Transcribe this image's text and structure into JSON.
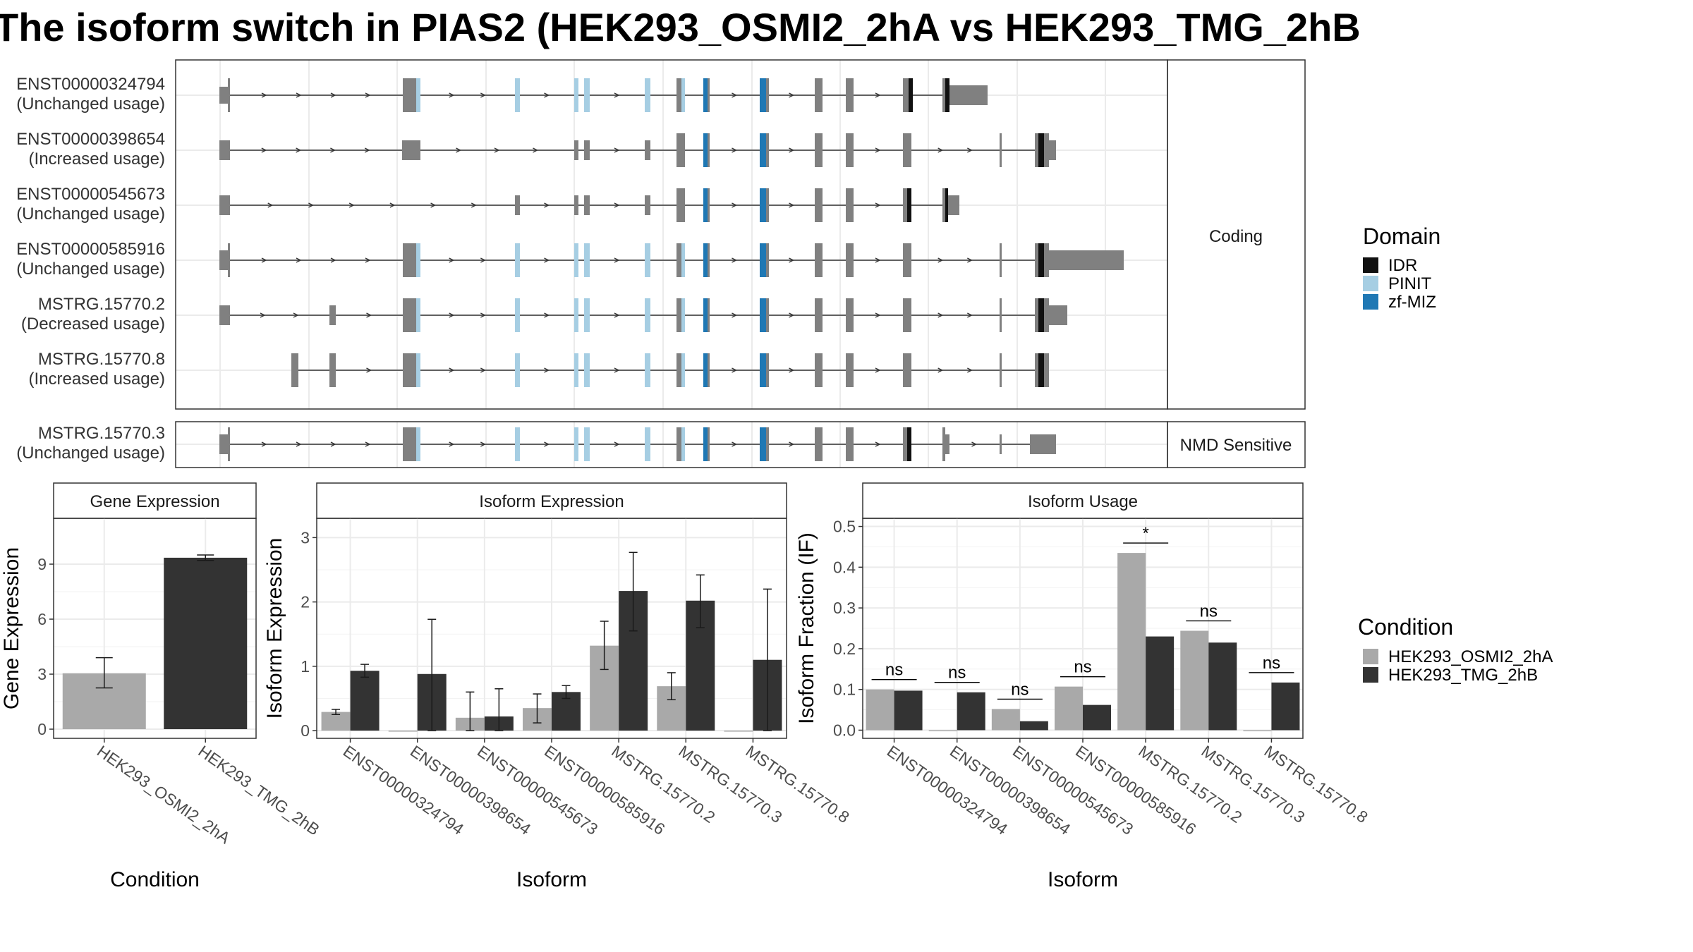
{
  "title": "The isoform switch in PIAS2 (HEK293_OSMI2_2hA vs HEK293_TMG_2hB",
  "colors": {
    "exon": "#808080",
    "idr": "#111111",
    "pinit": "#a6cee3",
    "zfmiz": "#1f78b4",
    "cond1": "#a9a9a9",
    "cond2": "#333333"
  },
  "structure": {
    "facets": [
      "Coding",
      "NMD Sensitive"
    ],
    "transcripts": [
      {
        "id": "ENST00000324794",
        "usage": "(Unchanged usage)",
        "group": 0
      },
      {
        "id": "ENST00000398654",
        "usage": "(Increased usage)",
        "group": 0
      },
      {
        "id": "ENST00000545673",
        "usage": "(Unchanged usage)",
        "group": 0
      },
      {
        "id": "ENST00000585916",
        "usage": "(Unchanged usage)",
        "group": 0
      },
      {
        "id": "MSTRG.15770.2",
        "usage": "(Decreased usage)",
        "group": 0
      },
      {
        "id": "MSTRG.15770.8",
        "usage": "(Increased usage)",
        "group": 0
      },
      {
        "id": "MSTRG.15770.3",
        "usage": "(Unchanged usage)",
        "group": 1
      }
    ]
  },
  "legend_domain": {
    "title": "Domain",
    "items": [
      {
        "label": "IDR",
        "color": "#111111"
      },
      {
        "label": "PINIT",
        "color": "#a6cee3"
      },
      {
        "label": "zf-MIZ",
        "color": "#1f78b4"
      }
    ]
  },
  "legend_condition": {
    "title": "Condition",
    "items": [
      {
        "label": "HEK293_OSMI2_2hA",
        "color": "#a9a9a9"
      },
      {
        "label": "HEK293_TMG_2hB",
        "color": "#333333"
      }
    ]
  },
  "chart_data": [
    {
      "type": "bar",
      "title": "Gene Expression",
      "xlabel": "Condition",
      "ylabel": "Gene Expression",
      "categories": [
        "HEK293_OSMI2_2hA",
        "HEK293_TMG_2hB"
      ],
      "values": [
        3.05,
        9.35
      ],
      "error_low": [
        2.25,
        9.2
      ],
      "error_high": [
        3.9,
        9.5
      ],
      "ylim": [
        -0.5,
        11.5
      ],
      "yticks": [
        0,
        3,
        6,
        9
      ]
    },
    {
      "type": "bar",
      "title": "Isoform Expression",
      "xlabel": "Isoform",
      "ylabel": "Isoform Expression",
      "categories": [
        "ENST00000324794",
        "ENST00000398654",
        "ENST00000545673",
        "ENST00000585916",
        "MSTRG.15770.2",
        "MSTRG.15770.3",
        "MSTRG.15770.8"
      ],
      "series": [
        {
          "values": [
            0.29,
            0.0,
            0.2,
            0.35,
            1.32,
            0.69,
            0.0
          ],
          "error_low": [
            0.25,
            0.0,
            0.0,
            0.12,
            0.95,
            0.48,
            0.0
          ],
          "error_high": [
            0.33,
            0.0,
            0.6,
            0.57,
            1.7,
            0.9,
            0.0
          ]
        },
        {
          "values": [
            0.93,
            0.88,
            0.22,
            0.6,
            2.17,
            2.02,
            1.1
          ],
          "error_low": [
            0.83,
            0.0,
            0.0,
            0.5,
            1.55,
            1.6,
            0.0
          ],
          "error_high": [
            1.03,
            1.73,
            0.65,
            0.7,
            2.77,
            2.42,
            2.2
          ]
        }
      ],
      "ylim": [
        -0.12,
        3.3
      ],
      "yticks": [
        0,
        1,
        2,
        3
      ]
    },
    {
      "type": "bar",
      "title": "Isoform Usage",
      "xlabel": "Isoform",
      "ylabel": "Isoform Fraction (IF)",
      "categories": [
        "ENST00000324794",
        "ENST00000398654",
        "ENST00000545673",
        "ENST00000585916",
        "MSTRG.15770.2",
        "MSTRG.15770.3",
        "MSTRG.15770.8"
      ],
      "series": [
        {
          "values": [
            0.1,
            0.0,
            0.052,
            0.107,
            0.435,
            0.244,
            0.0
          ]
        },
        {
          "values": [
            0.097,
            0.093,
            0.022,
            0.062,
            0.23,
            0.215,
            0.117
          ]
        }
      ],
      "significance": [
        "ns",
        "ns",
        "ns",
        "ns",
        "*",
        "ns",
        "ns"
      ],
      "ylim": [
        -0.02,
        0.52
      ],
      "yticks": [
        0.0,
        0.1,
        0.2,
        0.3,
        0.4,
        0.5
      ],
      "ytick_labels": [
        "0.0",
        "0.1",
        "0.2",
        "0.3",
        "0.4",
        "0.5"
      ]
    }
  ]
}
